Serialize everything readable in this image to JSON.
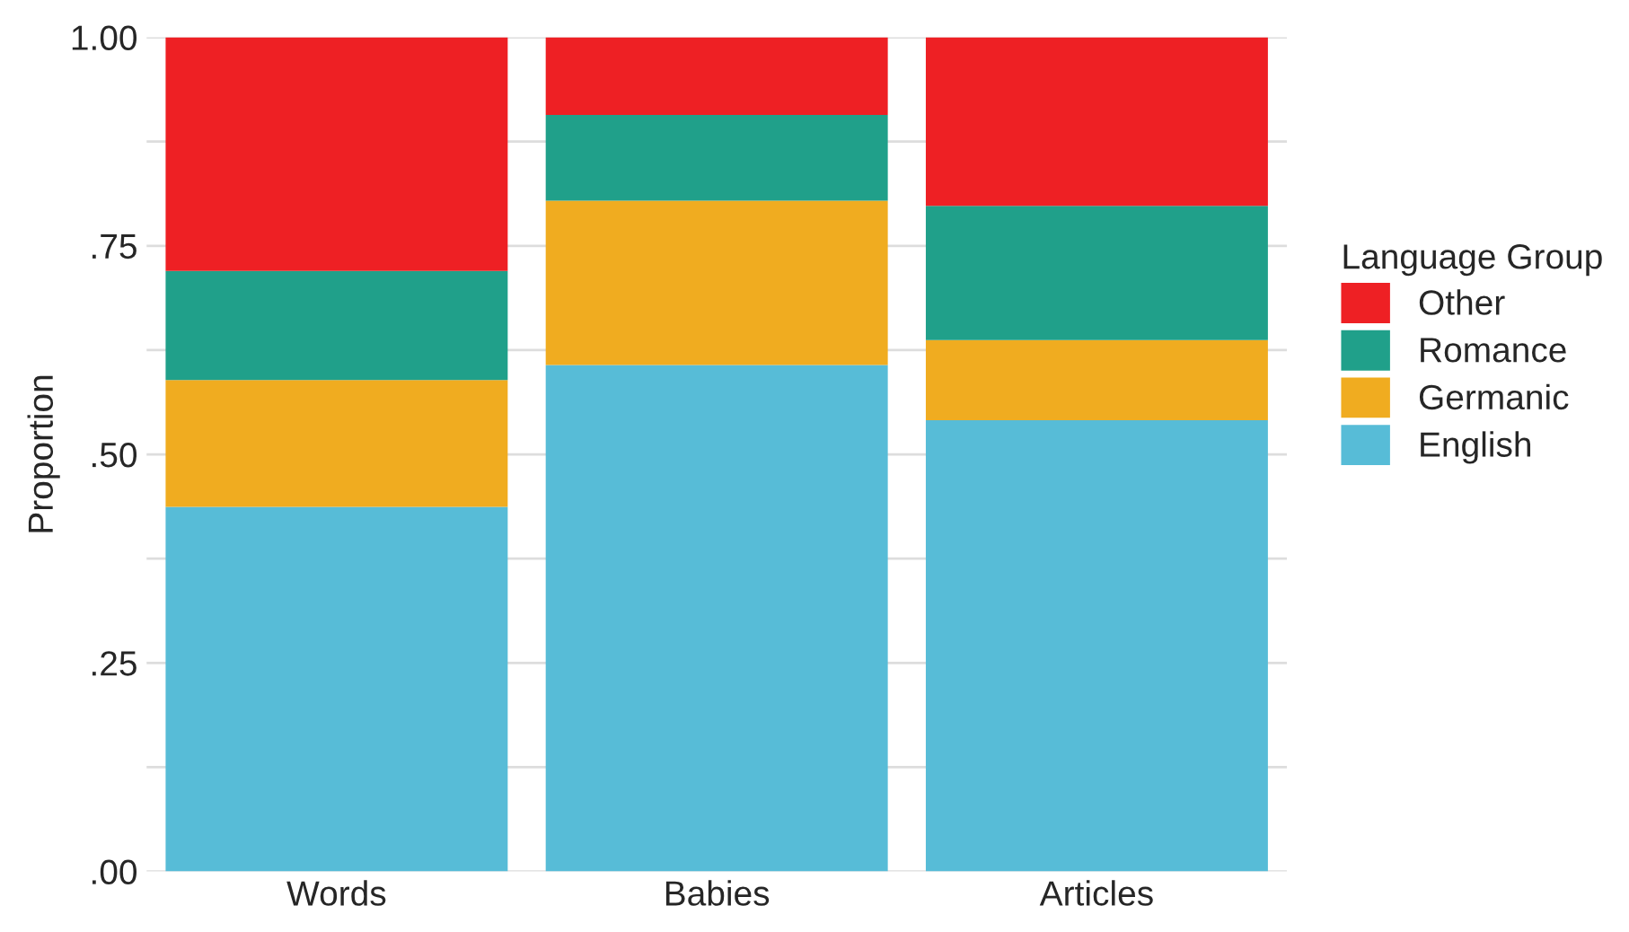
{
  "chart_data": {
    "type": "bar",
    "stacked": true,
    "ylabel": "Proportion",
    "legend_title": "Language Group",
    "legend": "right",
    "grid": "y",
    "categories": [
      "Words",
      "Babies",
      "Articles"
    ],
    "series": [
      {
        "name": "English",
        "color": "#57bcd7",
        "values": [
          0.437,
          0.607,
          0.541
        ]
      },
      {
        "name": "Germanic",
        "color": "#f0ac20",
        "values": [
          0.152,
          0.197,
          0.096
        ]
      },
      {
        "name": "Romance",
        "color": "#20a08a",
        "values": [
          0.131,
          0.103,
          0.161
        ]
      },
      {
        "name": "Other",
        "color": "#ee2024",
        "values": [
          0.28,
          0.093,
          0.202
        ]
      }
    ],
    "ylim": [
      0,
      1
    ],
    "yticks": [
      {
        "value": 0,
        "label": ".00"
      },
      {
        "value": 0.125,
        "label": null
      },
      {
        "value": 0.25,
        "label": ".25"
      },
      {
        "value": 0.375,
        "label": null
      },
      {
        "value": 0.5,
        "label": ".50"
      },
      {
        "value": 0.625,
        "label": null
      },
      {
        "value": 0.75,
        "label": ".75"
      },
      {
        "value": 0.875,
        "label": null
      },
      {
        "value": 1,
        "label": "1.00"
      }
    ]
  }
}
